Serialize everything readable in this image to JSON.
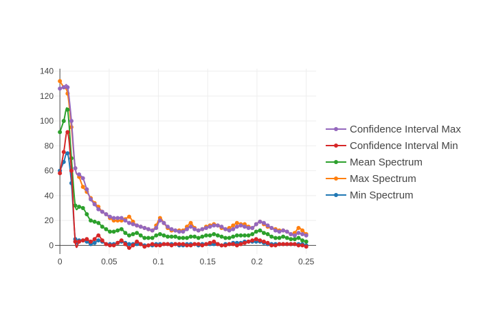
{
  "chart_data": {
    "type": "line",
    "xlim": [
      -0.005,
      0.26
    ],
    "ylim": [
      -7,
      142
    ],
    "grid": true,
    "legend_position": "right",
    "x_ticks": [
      0,
      0.05,
      0.1,
      0.15,
      0.2,
      0.25
    ],
    "x_tick_labels": [
      "0",
      "0.05",
      "0.1",
      "0.15",
      "0.2",
      "0.25"
    ],
    "y_ticks": [
      0,
      20,
      40,
      60,
      80,
      100,
      120,
      140
    ],
    "y_tick_labels": [
      "0",
      "20",
      "40",
      "60",
      "80",
      "100",
      "120",
      "140"
    ],
    "x": [
      0,
      0.0039,
      0.0078,
      0.0117,
      0.0156,
      0.0195,
      0.0234,
      0.0273,
      0.0313,
      0.0352,
      0.0391,
      0.043,
      0.0469,
      0.0508,
      0.0547,
      0.0586,
      0.0625,
      0.0664,
      0.0703,
      0.0742,
      0.0781,
      0.082,
      0.0859,
      0.0898,
      0.0938,
      0.0977,
      0.1016,
      0.1055,
      0.1094,
      0.1133,
      0.1172,
      0.1211,
      0.125,
      0.1289,
      0.1328,
      0.1367,
      0.1406,
      0.1445,
      0.1484,
      0.1523,
      0.1563,
      0.1602,
      0.1641,
      0.168,
      0.1719,
      0.1758,
      0.1797,
      0.1836,
      0.1875,
      0.1914,
      0.1953,
      0.1992,
      0.2031,
      0.207,
      0.2109,
      0.2148,
      0.2188,
      0.2227,
      0.2266,
      0.2305,
      0.2344,
      0.2383,
      0.2422,
      0.2461,
      0.25
    ],
    "series": [
      {
        "name": "Confidence Interval Max",
        "color": "#9467bd",
        "values": [
          126,
          127,
          127,
          100,
          62,
          57,
          54,
          45,
          37,
          33,
          29,
          27,
          25,
          23,
          22,
          22,
          22,
          20,
          18,
          17,
          16,
          15,
          14,
          13,
          12,
          14,
          20,
          18,
          15,
          13,
          12,
          11,
          11,
          13,
          15,
          13,
          12,
          13,
          14,
          15,
          16,
          16,
          15,
          13,
          12,
          13,
          15,
          16,
          15,
          14,
          14,
          17,
          19,
          18,
          16,
          14,
          12,
          11,
          12,
          11,
          9,
          8,
          10,
          9,
          8
        ]
      },
      {
        "name": "Confidence Interval Min",
        "color": "#d62728",
        "values": [
          58,
          75,
          91,
          60,
          3,
          3,
          4,
          5,
          3,
          5,
          8,
          4,
          1,
          0,
          0,
          2,
          4,
          1,
          -2,
          0,
          3,
          1,
          -1,
          0,
          1,
          0,
          0,
          1,
          1,
          0,
          1,
          1,
          1,
          0,
          0,
          1,
          1,
          0,
          1,
          2,
          3,
          1,
          0,
          0,
          1,
          1,
          0,
          1,
          2,
          3,
          4,
          5,
          4,
          3,
          2,
          0,
          0,
          1,
          1,
          1,
          1,
          1,
          0,
          0,
          -1
        ]
      },
      {
        "name": "Mean Spectrum",
        "color": "#2ca02c",
        "values": [
          91,
          100,
          109,
          70,
          32,
          31,
          30,
          25,
          20,
          19,
          18,
          15,
          13,
          11,
          11,
          12,
          13,
          10,
          8,
          9,
          10,
          8,
          6,
          6,
          6,
          8,
          9,
          8,
          7,
          7,
          7,
          6,
          6,
          6,
          7,
          7,
          6,
          7,
          8,
          8,
          9,
          8,
          7,
          6,
          6,
          7,
          8,
          8,
          8,
          8,
          9,
          11,
          12,
          10,
          9,
          7,
          6,
          6,
          7,
          6,
          5,
          5,
          6,
          4,
          3
        ]
      },
      {
        "name": "Max Spectrum",
        "color": "#ff7f0e",
        "values": [
          132,
          127,
          122,
          95,
          62,
          55,
          47,
          43,
          38,
          34,
          31,
          27,
          25,
          22,
          20,
          20,
          20,
          21,
          23,
          19,
          16,
          15,
          14,
          13,
          12,
          16,
          22,
          18,
          14,
          12,
          12,
          12,
          12,
          15,
          18,
          14,
          12,
          13,
          15,
          16,
          17,
          16,
          14,
          13,
          14,
          16,
          18,
          17,
          17,
          15,
          14,
          17,
          19,
          17,
          15,
          14,
          13,
          12,
          12,
          11,
          9,
          10,
          14,
          12,
          9
        ]
      },
      {
        "name": "Min Spectrum",
        "color": "#1f77b4",
        "values": [
          60,
          67,
          74,
          50,
          5,
          4,
          4,
          3,
          1,
          2,
          4,
          3,
          1,
          1,
          1,
          2,
          3,
          2,
          1,
          1,
          1,
          1,
          0,
          0,
          0,
          1,
          1,
          1,
          1,
          1,
          1,
          0,
          0,
          1,
          1,
          1,
          0,
          1,
          1,
          1,
          1,
          1,
          0,
          1,
          1,
          2,
          2,
          2,
          3,
          3,
          3,
          3,
          3,
          2,
          1,
          1,
          1,
          1,
          1,
          1,
          1,
          1,
          1,
          1,
          0
        ]
      }
    ]
  }
}
